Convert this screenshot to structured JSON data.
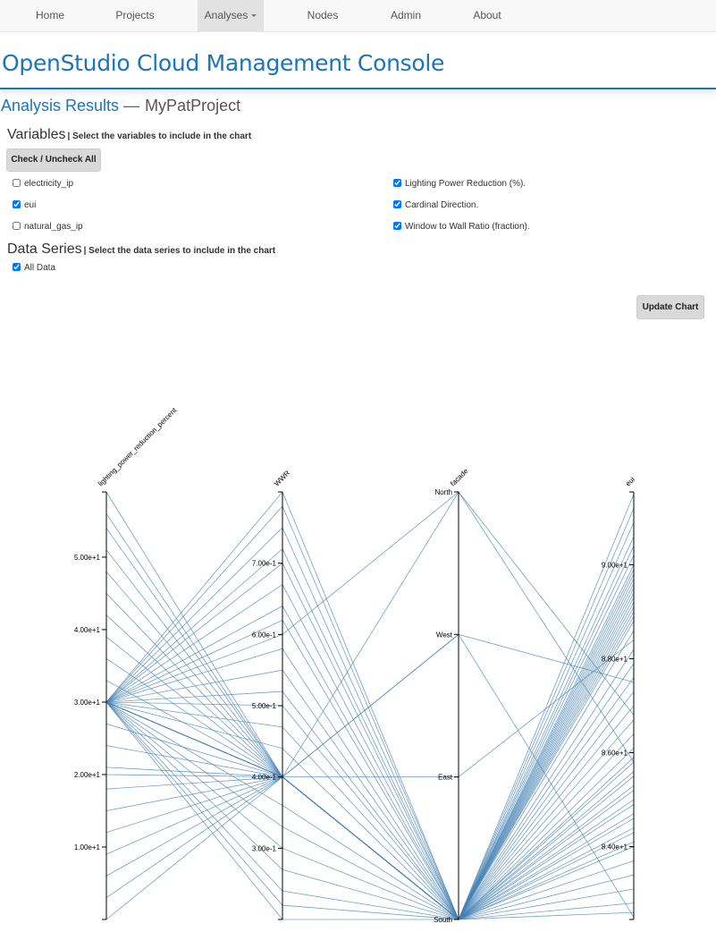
{
  "nav": {
    "items": [
      "Home",
      "Projects",
      "Analyses",
      "Nodes",
      "Admin",
      "About"
    ],
    "active": 2
  },
  "header": {
    "title": "OpenStudio Cloud Management Console"
  },
  "page": {
    "heading": "Analysis Results —",
    "project": "MyPatProject"
  },
  "variables": {
    "title": "Variables",
    "hint": "| Select the variables to include in the chart",
    "toggle_button": "Check / Uncheck All",
    "options": [
      {
        "label": "electricity_ip",
        "checked": false
      },
      {
        "label": "eui",
        "checked": true
      },
      {
        "label": "natural_gas_ip",
        "checked": false
      },
      {
        "label": "Lighting Power Reduction (%).",
        "checked": true
      },
      {
        "label": "Cardinal Direction.",
        "checked": true
      },
      {
        "label": "Window to Wall Ratio (fraction).",
        "checked": true
      }
    ]
  },
  "data_series": {
    "title": "Data Series",
    "hint": "| Select the data series to include in the chart",
    "options": [
      {
        "label": "All Data",
        "checked": true
      }
    ]
  },
  "update_button": "Update Chart",
  "chart_data": {
    "type": "parallel",
    "color": "#4682b4",
    "dimensions": [
      {
        "label": "lighting_power_reduction_percent",
        "ylim": [
          0,
          59
        ],
        "yticks": [
          {
            "value": 10,
            "label": "1.00e+1"
          },
          {
            "value": 20,
            "label": "2.00e+1"
          },
          {
            "value": 30,
            "label": "3.00e+1"
          },
          {
            "value": 40,
            "label": "4.00e+1"
          },
          {
            "value": 50,
            "label": "5.00e+1"
          }
        ]
      },
      {
        "label": "WWR",
        "ylim": [
          0.2,
          0.8
        ],
        "yticks": [
          {
            "value": 0.3,
            "label": "3.00e-1"
          },
          {
            "value": 0.4,
            "label": "4.00e-1"
          },
          {
            "value": 0.5,
            "label": "5.00e-1"
          },
          {
            "value": 0.6,
            "label": "6.00e-1"
          },
          {
            "value": 0.7,
            "label": "7.00e-1"
          }
        ]
      },
      {
        "label": "facade",
        "categories": [
          "North",
          "West",
          "East",
          "South"
        ]
      },
      {
        "label": "eui",
        "ylim": [
          82.45,
          91.55
        ],
        "yticks": [
          {
            "value": 84,
            "label": "8.40e+1"
          },
          {
            "value": 86,
            "label": "8.60e+1"
          },
          {
            "value": 88,
            "label": "8.80e+1"
          },
          {
            "value": 90,
            "label": "9.00e+1"
          }
        ]
      }
    ],
    "records": [
      [
        30,
        0.4,
        "South",
        89.6
      ],
      [
        30,
        0.4,
        "South",
        89.4
      ],
      [
        30,
        0.4,
        "South",
        89.2
      ],
      [
        30,
        0.4,
        "South",
        88.9
      ],
      [
        30,
        0.4,
        "South",
        89.8
      ],
      [
        30,
        0.4,
        "South",
        89.0
      ],
      [
        30,
        0.8,
        "South",
        91.5
      ],
      [
        30,
        0.78,
        "South",
        91.2
      ],
      [
        30,
        0.75,
        "South",
        90.9
      ],
      [
        30,
        0.72,
        "South",
        90.6
      ],
      [
        30,
        0.7,
        "South",
        90.4
      ],
      [
        30,
        0.67,
        "South",
        90.2
      ],
      [
        30,
        0.64,
        "South",
        90.0
      ],
      [
        30,
        0.62,
        "South",
        89.9
      ],
      [
        30,
        0.58,
        "South",
        89.7
      ],
      [
        30,
        0.55,
        "South",
        89.5
      ],
      [
        30,
        0.52,
        "South",
        89.3
      ],
      [
        30,
        0.5,
        "South",
        89.1
      ],
      [
        30,
        0.47,
        "South",
        88.8
      ],
      [
        30,
        0.44,
        "South",
        88.6
      ],
      [
        30,
        0.36,
        "South",
        88.2
      ],
      [
        30,
        0.33,
        "South",
        87.9
      ],
      [
        30,
        0.3,
        "South",
        87.6
      ],
      [
        30,
        0.27,
        "South",
        87.3
      ],
      [
        30,
        0.24,
        "South",
        87.0
      ],
      [
        30,
        0.22,
        "South",
        86.7
      ],
      [
        30,
        0.2,
        "South",
        86.4
      ],
      [
        59,
        0.4,
        "South",
        85.8
      ],
      [
        56,
        0.4,
        "South",
        85.5
      ],
      [
        54,
        0.4,
        "South",
        85.2
      ],
      [
        51,
        0.4,
        "South",
        84.9
      ],
      [
        48,
        0.4,
        "South",
        84.6
      ],
      [
        45,
        0.4,
        "South",
        84.3
      ],
      [
        42,
        0.4,
        "South",
        84.0
      ],
      [
        39,
        0.4,
        "South",
        83.7
      ],
      [
        36,
        0.4,
        "South",
        83.4
      ],
      [
        33,
        0.4,
        "South",
        83.1
      ],
      [
        27,
        0.4,
        "South",
        82.8
      ],
      [
        24,
        0.4,
        "South",
        82.6
      ],
      [
        21,
        0.4,
        "South",
        86.1
      ],
      [
        18,
        0.4,
        "South",
        85.9
      ],
      [
        15,
        0.4,
        "South",
        85.6
      ],
      [
        12,
        0.4,
        "South",
        85.3
      ],
      [
        9,
        0.4,
        "South",
        85.0
      ],
      [
        6,
        0.4,
        "South",
        84.7
      ],
      [
        3,
        0.4,
        "South",
        84.4
      ],
      [
        0,
        0.4,
        "South",
        84.1
      ],
      [
        30,
        0.4,
        "North",
        86.8
      ],
      [
        30,
        0.4,
        "West",
        87.5
      ],
      [
        30,
        0.4,
        "East",
        88.4
      ],
      [
        20,
        0.4,
        "West",
        82.5
      ],
      [
        30,
        0.6,
        "North",
        85.8
      ]
    ]
  }
}
